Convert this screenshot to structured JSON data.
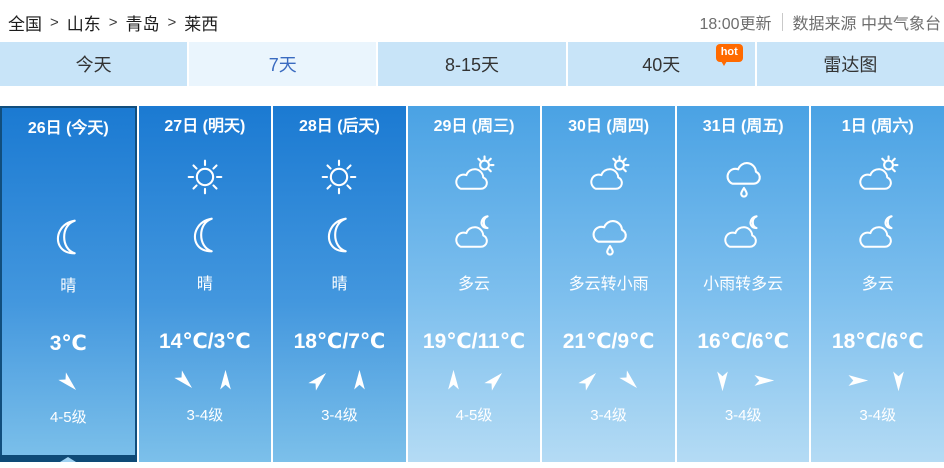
{
  "breadcrumb": {
    "separator": ">",
    "items": [
      "全国",
      "山东",
      "青岛",
      "莱西"
    ]
  },
  "update_info": {
    "time": "18:00更新",
    "source": "数据来源 中央气象台"
  },
  "tabs": [
    {
      "label": "今天",
      "selected": false
    },
    {
      "label": "7天",
      "selected": true
    },
    {
      "label": "8-15天",
      "selected": false
    },
    {
      "label": "40天",
      "selected": false,
      "badge": "hot"
    },
    {
      "label": "雷达图",
      "selected": false
    }
  ],
  "days": [
    {
      "label": "26日 (今天)",
      "icons": [
        null,
        "moon"
      ],
      "weather": "晴",
      "temp": "3℃",
      "wind_dirs": [
        135
      ],
      "wind_level": "4-5级",
      "selected": true,
      "theme": "sunny"
    },
    {
      "label": "27日 (明天)",
      "icons": [
        "sun",
        "moon"
      ],
      "weather": "晴",
      "temp": "14℃/3℃",
      "wind_dirs": [
        135,
        0
      ],
      "wind_level": "3-4级",
      "selected": false,
      "theme": "sunny"
    },
    {
      "label": "28日 (后天)",
      "icons": [
        "sun",
        "moon"
      ],
      "weather": "晴",
      "temp": "18℃/7℃",
      "wind_dirs": [
        45,
        0
      ],
      "wind_level": "3-4级",
      "selected": false,
      "theme": "sunny"
    },
    {
      "label": "29日 (周三)",
      "icons": [
        "cloud-sun",
        "cloud-moon"
      ],
      "weather": "多云",
      "temp": "19℃/11℃",
      "wind_dirs": [
        0,
        45
      ],
      "wind_level": "4-5级",
      "selected": false,
      "theme": "cloudy"
    },
    {
      "label": "30日 (周四)",
      "icons": [
        "cloud-sun",
        "cloud-rain"
      ],
      "weather": "多云转小雨",
      "temp": "21℃/9℃",
      "wind_dirs": [
        45,
        135
      ],
      "wind_level": "3-4级",
      "selected": false,
      "theme": "cloudy"
    },
    {
      "label": "31日 (周五)",
      "icons": [
        "cloud-rain",
        "cloud-moon"
      ],
      "weather": "小雨转多云",
      "temp": "16℃/6℃",
      "wind_dirs": [
        180,
        90
      ],
      "wind_level": "3-4级",
      "selected": false,
      "theme": "cloudy"
    },
    {
      "label": "1日 (周六)",
      "icons": [
        "cloud-sun",
        "cloud-moon"
      ],
      "weather": "多云",
      "temp": "18℃/6℃",
      "wind_dirs": [
        90,
        180
      ],
      "wind_level": "3-4级",
      "selected": false,
      "theme": "cloudy"
    }
  ],
  "colors": {
    "sunny_top": "#1b7ad2",
    "sunny_bottom": "#7cc0ea",
    "cloudy_top": "#4aa2e4",
    "cloudy_bottom": "#b4dbf4",
    "tab_bg": "#c8e4f8",
    "tab_selected_bg": "#eaf5fd",
    "tab_selected_text": "#3a6bc0",
    "hot_badge": "#ff6a00",
    "selected_day_border": "#114e7d"
  }
}
